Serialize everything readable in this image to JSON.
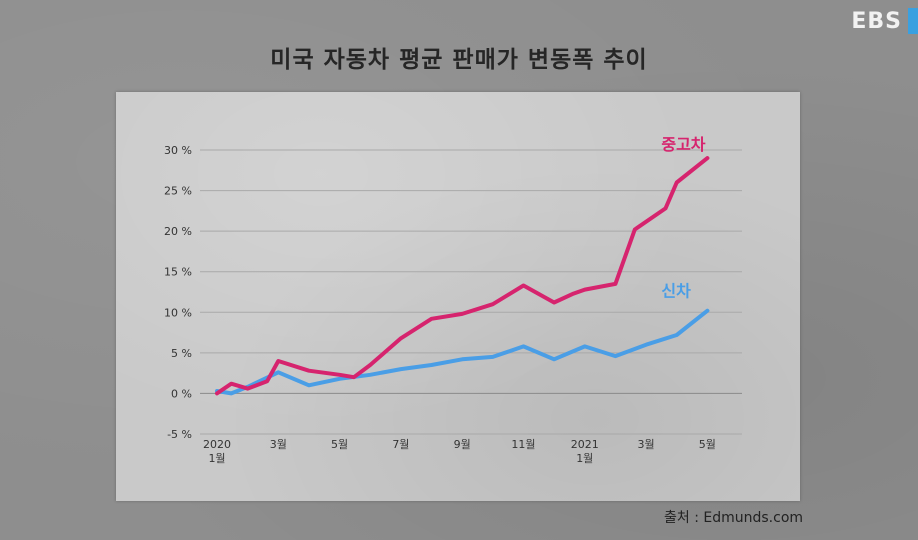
{
  "header": {
    "title": "미국 자동차 평균 판매가 변동폭 추이",
    "logo_text": "EBS",
    "logo_accent_color": "#3aa0e0"
  },
  "source_text": "출처 : Edmunds.com",
  "chart_data": {
    "type": "line",
    "title": "미국 자동차 평균 판매가 변동폭 추이",
    "x": [
      "2020-01",
      "2020-02",
      "2020-03",
      "2020-04",
      "2020-05",
      "2020-06",
      "2020-07",
      "2020-08",
      "2020-09",
      "2020-10",
      "2020-11",
      "2020-12",
      "2021-01",
      "2021-02",
      "2021-03",
      "2021-04",
      "2021-05",
      "2021-06"
    ],
    "x_tick_labels": [
      {
        "x": "2020-01",
        "line1": "2020",
        "line2": "1월"
      },
      {
        "x": "2020-03",
        "line1": "3월",
        "line2": ""
      },
      {
        "x": "2020-05",
        "line1": "5월",
        "line2": ""
      },
      {
        "x": "2020-07",
        "line1": "7월",
        "line2": ""
      },
      {
        "x": "2020-09",
        "line1": "9월",
        "line2": ""
      },
      {
        "x": "2020-11",
        "line1": "11월",
        "line2": ""
      },
      {
        "x": "2021-01",
        "line1": "2021",
        "line2": "1월"
      },
      {
        "x": "2021-03",
        "line1": "3월",
        "line2": ""
      },
      {
        "x": "2021-05",
        "line1": "5월",
        "line2": ""
      }
    ],
    "y_ticks": [
      -5,
      0,
      5,
      10,
      15,
      20,
      25,
      30
    ],
    "y_tick_labels": [
      "-5 %",
      "0 %",
      "5 %",
      "10 %",
      "15 %",
      "20 %",
      "25 %",
      "30 %"
    ],
    "ylim": [
      -5,
      30
    ],
    "grid": true,
    "series": [
      {
        "name": "중고차",
        "color": "#d6246e",
        "points": [
          [
            "2020-01",
            0.0
          ],
          [
            "2020-01-15",
            1.2
          ],
          [
            "2020-02",
            0.6
          ],
          [
            "2020-02-20",
            1.5
          ],
          [
            "2020-03",
            4.0
          ],
          [
            "2020-04",
            2.8
          ],
          [
            "2020-05",
            2.3
          ],
          [
            "2020-05-15",
            2.0
          ],
          [
            "2020-06",
            3.5
          ],
          [
            "2020-07",
            6.8
          ],
          [
            "2020-08",
            9.2
          ],
          [
            "2020-09",
            9.8
          ],
          [
            "2020-10",
            11.0
          ],
          [
            "2020-11",
            13.3
          ],
          [
            "2020-12",
            11.2
          ],
          [
            "2020-12-20",
            12.3
          ],
          [
            "2021-01",
            12.8
          ],
          [
            "2021-02",
            13.5
          ],
          [
            "2021-02-20",
            20.2
          ],
          [
            "2021-03-20",
            22.8
          ],
          [
            "2021-04",
            26.0
          ],
          [
            "2021-05",
            29.0
          ]
        ]
      },
      {
        "name": "신차",
        "color": "#4a9ee6",
        "points": [
          [
            "2020-01",
            0.3
          ],
          [
            "2020-01-15",
            0.0
          ],
          [
            "2020-02",
            0.8
          ],
          [
            "2020-03",
            2.6
          ],
          [
            "2020-04",
            1.0
          ],
          [
            "2020-05",
            1.8
          ],
          [
            "2020-06",
            2.3
          ],
          [
            "2020-07",
            3.0
          ],
          [
            "2020-08",
            3.5
          ],
          [
            "2020-09",
            4.2
          ],
          [
            "2020-10",
            4.5
          ],
          [
            "2020-11",
            5.8
          ],
          [
            "2020-12",
            4.2
          ],
          [
            "2021-01",
            5.8
          ],
          [
            "2021-02",
            4.6
          ],
          [
            "2021-03",
            6.0
          ],
          [
            "2021-04",
            7.2
          ],
          [
            "2021-05",
            10.2
          ]
        ]
      }
    ]
  }
}
